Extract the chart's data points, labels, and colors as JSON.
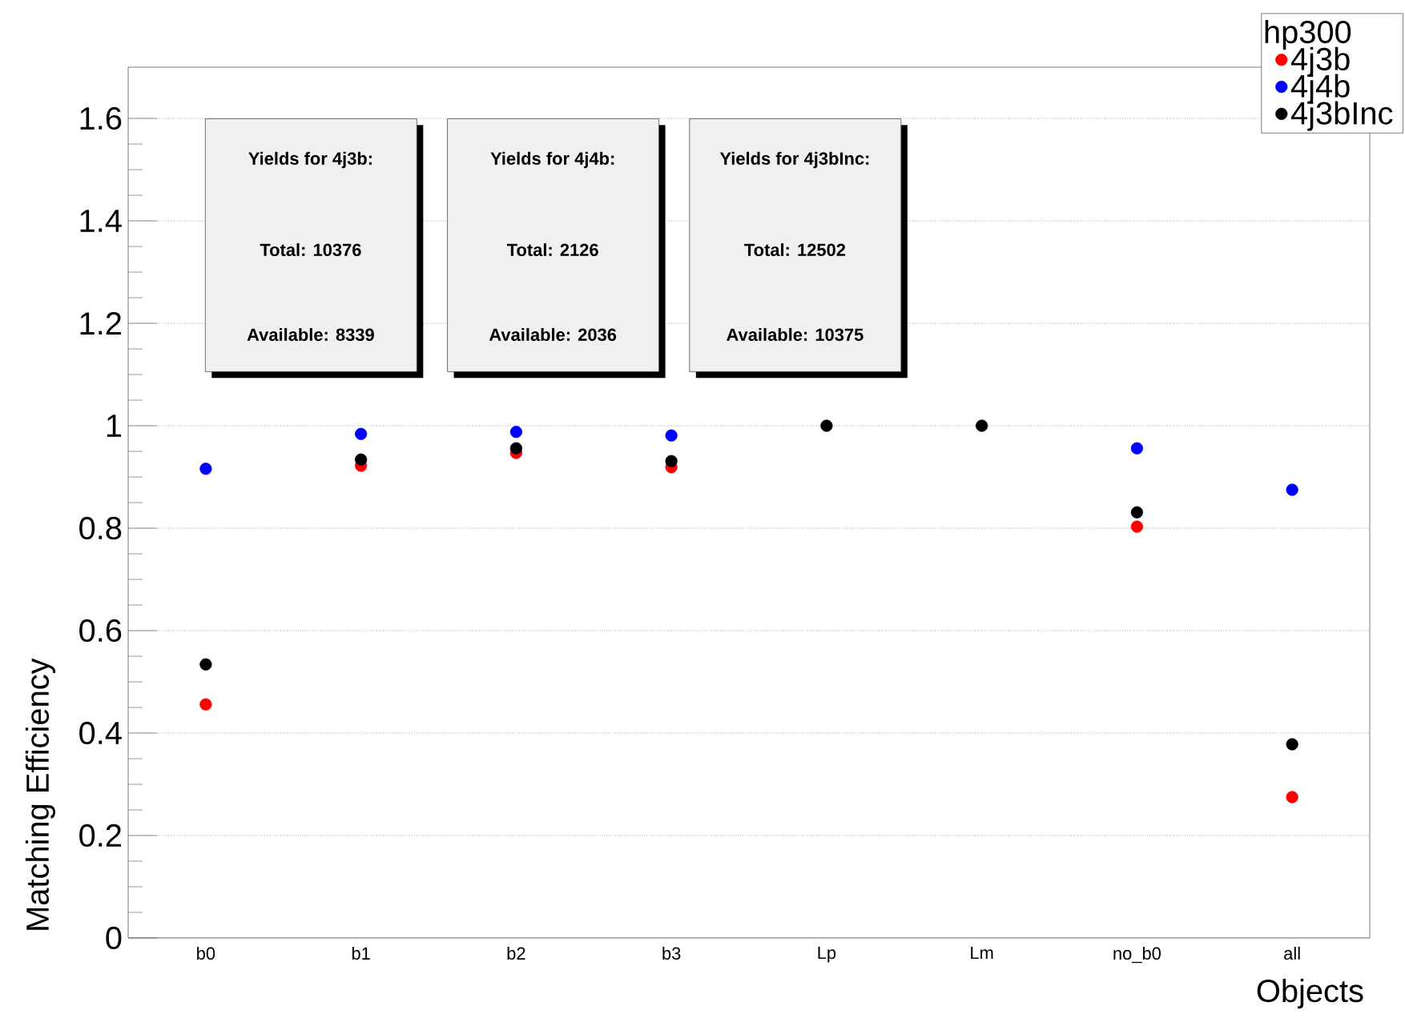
{
  "chart_data": {
    "type": "scatter",
    "xlabel": "Objects",
    "ylabel": "Matching Efficiency",
    "legend_title": "hp300",
    "categories": [
      "b0",
      "b1",
      "b2",
      "b3",
      "Lp",
      "Lm",
      "no_b0",
      "all"
    ],
    "series": [
      {
        "name": "4j3b",
        "color": "#ff0000",
        "values": [
          0.456,
          0.922,
          0.947,
          0.919,
          null,
          null,
          0.803,
          0.275
        ]
      },
      {
        "name": "4j4b",
        "color": "#0000ff",
        "values": [
          0.916,
          0.984,
          0.988,
          0.981,
          null,
          null,
          0.956,
          0.875
        ]
      },
      {
        "name": "4j3bInc",
        "color": "#000000",
        "values": [
          0.534,
          0.934,
          0.956,
          0.931,
          1.0,
          1.0,
          0.831,
          0.378
        ]
      }
    ],
    "ylim": [
      0,
      1.7
    ],
    "yticks": [
      0,
      0.2,
      0.4,
      0.6,
      0.8,
      1,
      1.2,
      1.4,
      1.6
    ],
    "grid": "y",
    "legend": "top right",
    "marker": "circle",
    "annotations": [
      "Yields for 4j3b:",
      "Total: 10376",
      "Available: 8339",
      "Yields for 4j4b:",
      "Total: 2126",
      "Available: 2036",
      "Yields for 4j3bInc:",
      "Total: 12502",
      "Available: 10375"
    ]
  }
}
